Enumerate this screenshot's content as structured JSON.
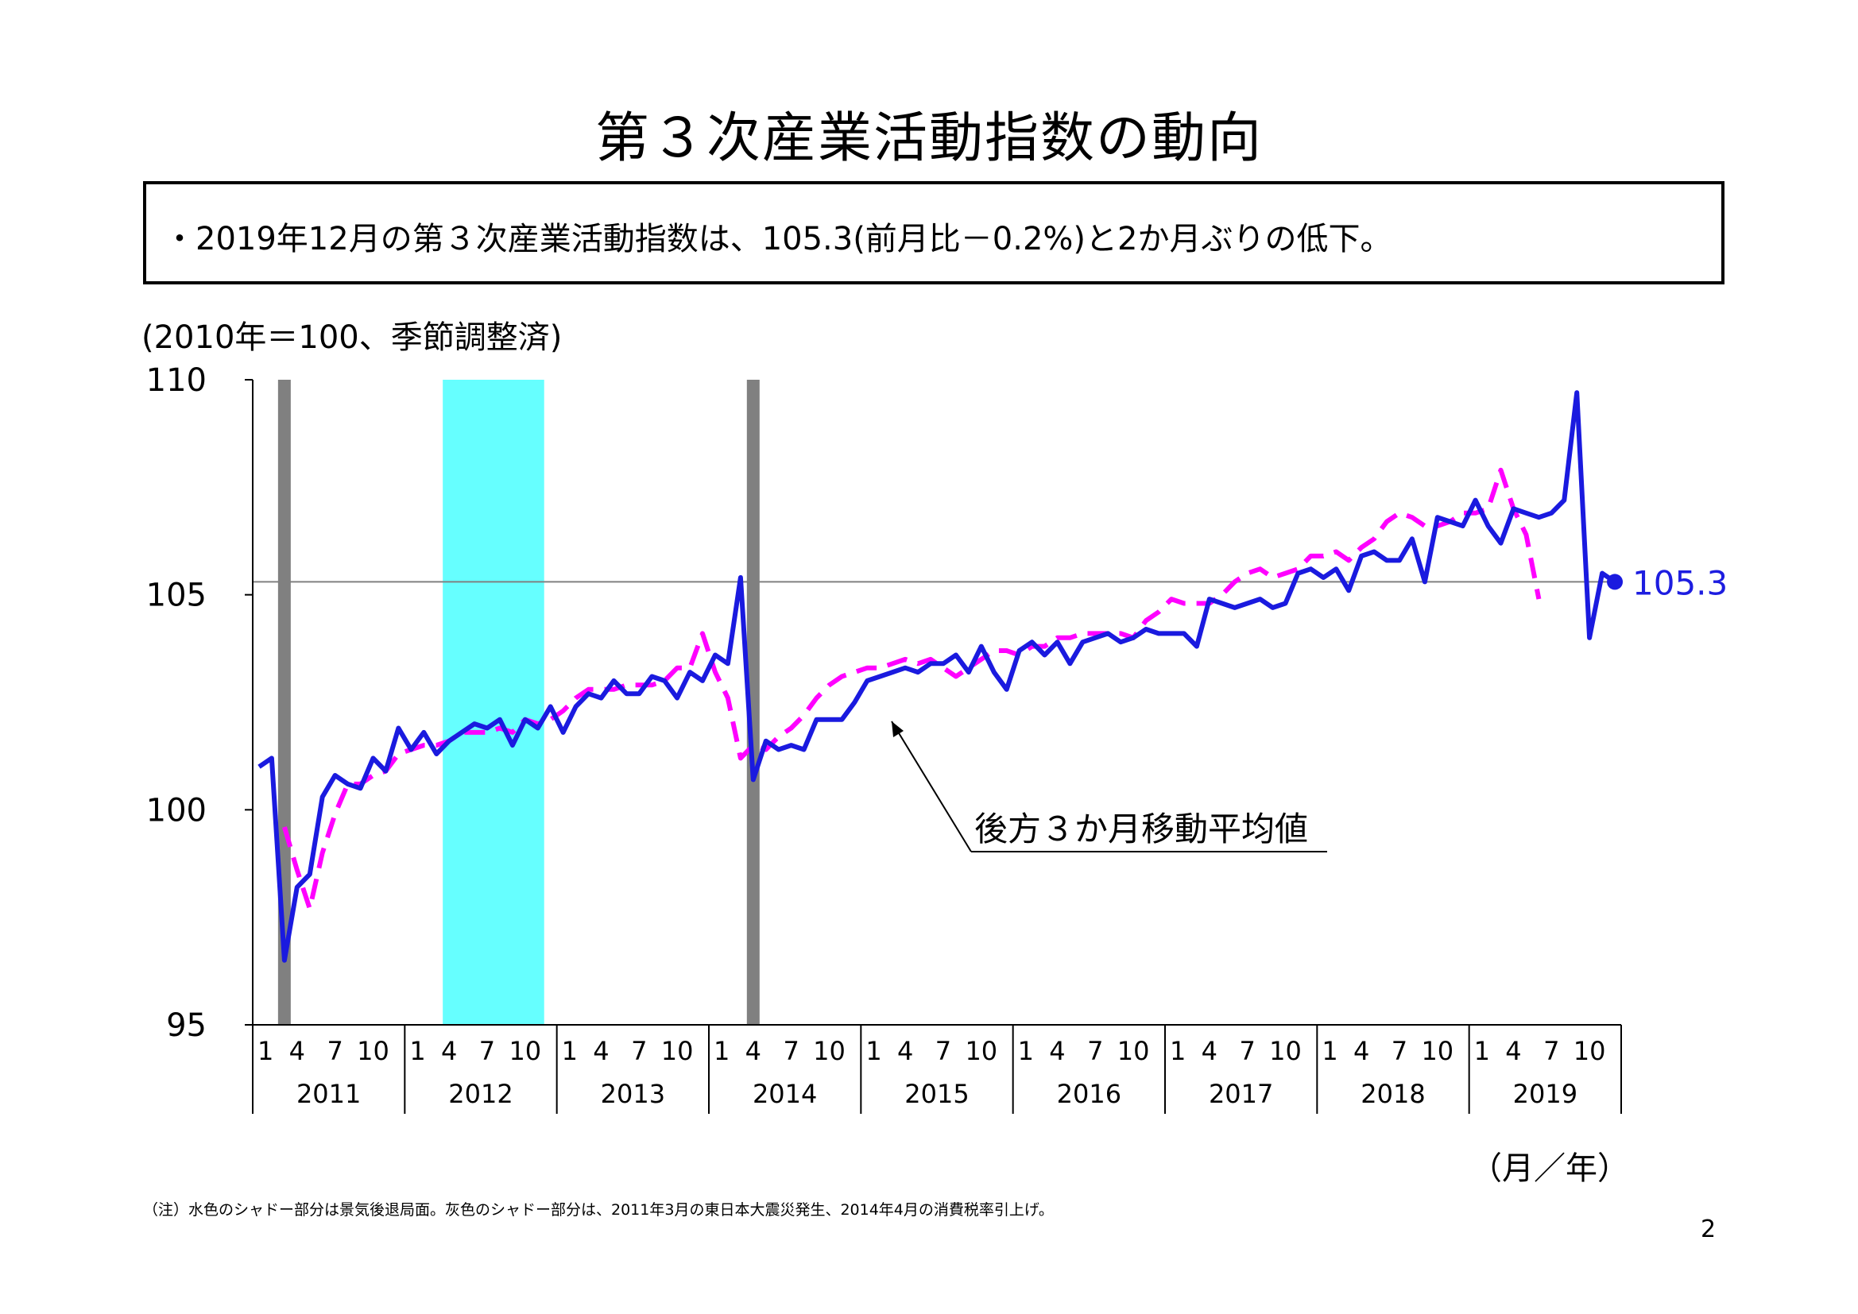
{
  "title": "第３次産業活動指数の動向",
  "summary": "・2019年12月の第３次産業活動指数は、105.3(前月比－0.2%)と2か月ぶりの低下。",
  "unit_label": "(2010年＝100、季節調整済)",
  "x_axis_unit": "（月／年）",
  "footnote": "（注）水色のシャドー部分は景気後退局面。灰色のシャドー部分は、2011年3月の東日本大震災発生、2014年4月の消費税率引上げ。",
  "page_number": "2",
  "colors": {
    "index_line": "#1a1adf",
    "moving_average": "#ff00ff",
    "recession_shade": "#66ffff",
    "event_shade": "#808080",
    "reference_line": "#808080"
  },
  "chart_data": {
    "type": "line",
    "ylim": [
      95,
      110
    ],
    "y_ticks": [
      "95",
      "100",
      "105",
      "110"
    ],
    "month_ticks": [
      "1",
      "4",
      "7",
      "10"
    ],
    "years": [
      "2011",
      "2012",
      "2013",
      "2014",
      "2015",
      "2016",
      "2017",
      "2018",
      "2019"
    ],
    "reference_line_value": 105.3,
    "last_value_label": "105.3",
    "annotation": "後方３か月移動平均値",
    "shades": [
      {
        "kind": "event",
        "from": "2011-03",
        "to": "2011-03"
      },
      {
        "kind": "recession",
        "from": "2012-04",
        "to": "2012-11"
      },
      {
        "kind": "event",
        "from": "2014-04",
        "to": "2014-04"
      }
    ],
    "series": [
      {
        "start": "2011-01",
        "values": [
          101.0,
          101.2,
          96.5,
          98.2,
          98.5,
          100.3,
          100.8,
          100.6,
          100.5,
          101.2,
          100.9,
          101.9,
          101.4,
          101.8,
          101.3,
          101.6,
          101.8,
          102.0,
          101.9,
          102.1,
          101.5,
          102.1,
          101.9,
          102.4,
          101.8,
          102.4,
          102.7,
          102.6,
          103.0,
          102.7,
          102.7,
          103.1,
          103.0,
          102.6,
          103.2,
          103.0,
          103.6,
          103.4,
          105.4,
          100.7,
          101.6,
          101.4,
          101.5,
          101.4,
          102.1,
          102.1,
          102.1,
          102.5,
          103.0,
          103.1,
          103.2,
          103.3,
          103.2,
          103.4,
          103.4,
          103.6,
          103.2,
          103.8,
          103.2,
          102.8,
          103.7,
          103.9,
          103.6,
          103.9,
          103.4,
          103.9,
          104.0,
          104.1,
          103.9,
          104.0,
          104.2,
          104.1,
          104.1,
          104.1,
          103.8,
          104.9,
          104.8,
          104.7,
          104.8,
          104.9,
          104.7,
          104.8,
          105.5,
          105.6,
          105.4,
          105.6,
          105.1,
          105.9,
          106.0,
          105.8,
          105.8,
          106.3,
          105.3,
          106.8,
          106.7,
          106.6,
          107.2,
          106.6,
          106.2,
          107.0,
          106.9,
          106.8,
          106.9,
          107.2,
          109.7,
          104.0,
          105.5,
          105.3
        ]
      },
      {
        "start": "2011-03",
        "values": [
          99.6,
          98.6,
          97.7,
          99.0,
          99.9,
          100.6,
          100.6,
          100.8,
          100.9,
          101.3,
          101.4,
          101.5,
          101.5,
          101.6,
          101.8,
          101.8,
          101.8,
          101.9,
          101.8,
          102.1,
          102.0,
          102.1,
          102.3,
          102.6,
          102.8,
          102.8,
          102.8,
          102.9,
          102.9,
          102.9,
          103.0,
          103.3,
          103.3,
          104.1,
          103.2,
          102.6,
          101.2,
          101.5,
          101.4,
          101.7,
          101.9,
          102.2,
          102.6,
          102.9,
          103.1,
          103.2,
          103.3,
          103.3,
          103.4,
          103.5,
          103.4,
          103.5,
          103.3,
          103.1,
          103.3,
          103.5,
          103.7,
          103.7,
          103.6,
          103.8,
          103.8,
          104.0,
          104.0,
          104.1,
          104.1,
          104.1,
          104.1,
          104.0,
          104.4,
          104.6,
          104.9,
          104.8,
          104.8,
          104.8,
          105.0,
          105.3,
          105.5,
          105.6,
          105.4,
          105.5,
          105.6,
          105.9,
          105.9,
          106.0,
          105.8,
          106.1,
          106.3,
          106.7,
          106.9,
          106.8,
          106.6,
          106.6,
          106.7,
          106.9,
          106.9,
          107.0,
          107.9,
          107.0,
          106.4,
          104.9
        ]
      }
    ]
  }
}
